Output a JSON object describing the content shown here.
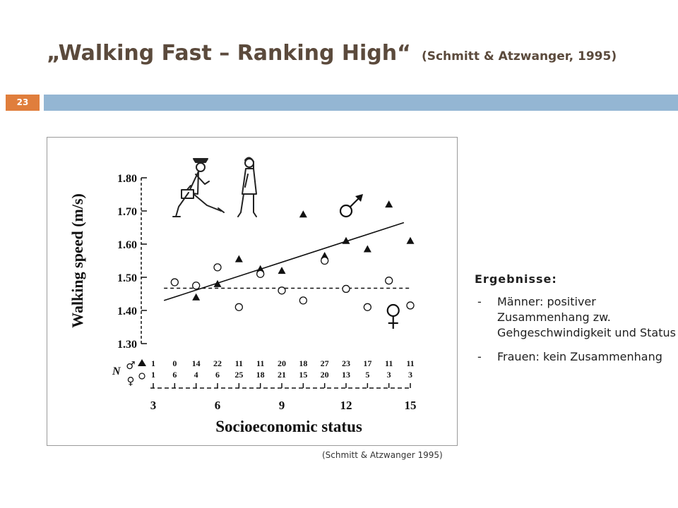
{
  "slide": {
    "title": "„Walking Fast – Ranking High“",
    "title_citation": "(Schmitt & Atzwanger, 1995)",
    "number": "23",
    "source_caption": "(Schmitt & Atzwanger 1995)",
    "colors": {
      "title": "#5b4a3c",
      "accent_bar": "#94b6d3",
      "slide_number_bg": "#e07e3c"
    }
  },
  "results": {
    "heading": "Ergebnisse:",
    "items": [
      {
        "bullet": "-",
        "text": "Männer: positiver Zusammenhang zw. Gehgeschwindigkeit und Status"
      },
      {
        "bullet": "-",
        "text": "Frauen: kein Zusammenhang"
      }
    ]
  },
  "chart_data": {
    "type": "scatter",
    "xlabel": "Socioeconomic status",
    "ylabel": "Walking speed (m/s)",
    "xlim": [
      3,
      15
    ],
    "ylim": [
      1.3,
      1.8
    ],
    "x_ticks": [
      "3",
      "6",
      "9",
      "12",
      "15"
    ],
    "y_ticks": [
      "1.30",
      "1.40",
      "1.50",
      "1.60",
      "1.70",
      "1.80"
    ],
    "n_label": "N",
    "male_symbol": "♂",
    "female_symbol": "♀",
    "n_counts": {
      "x": [
        3,
        4,
        5,
        6,
        7,
        8,
        9,
        10,
        11,
        12,
        13,
        14,
        15
      ],
      "male": [
        "1",
        "0",
        "14",
        "22",
        "11",
        "11",
        "20",
        "18",
        "27",
        "23",
        "17",
        "11",
        "11"
      ],
      "female": [
        "1",
        "6",
        "4",
        "6",
        "25",
        "18",
        "21",
        "15",
        "20",
        "13",
        "5",
        "3",
        "3"
      ]
    },
    "series": [
      {
        "marker": "filled-triangle",
        "points": [
          [
            5,
            1.44
          ],
          [
            6,
            1.48
          ],
          [
            7,
            1.555
          ],
          [
            8,
            1.525
          ],
          [
            9,
            1.52
          ],
          [
            10,
            1.69
          ],
          [
            11,
            1.565
          ],
          [
            12,
            1.61
          ],
          [
            13,
            1.585
          ],
          [
            14,
            1.72
          ],
          [
            15,
            1.61
          ]
        ]
      },
      {
        "marker": "open-circle",
        "points": [
          [
            4,
            1.485
          ],
          [
            5,
            1.475
          ],
          [
            6,
            1.53
          ],
          [
            7,
            1.41
          ],
          [
            8,
            1.51
          ],
          [
            9,
            1.46
          ],
          [
            10,
            1.43
          ],
          [
            11,
            1.55
          ],
          [
            12,
            1.465
          ],
          [
            13,
            1.41
          ],
          [
            14,
            1.49
          ],
          [
            15,
            1.415
          ]
        ]
      }
    ],
    "trend_lines": [
      {
        "style": "solid",
        "from": [
          3.5,
          1.43
        ],
        "to": [
          14.7,
          1.665
        ]
      },
      {
        "style": "dashed",
        "from": [
          3.5,
          1.467
        ],
        "to": [
          15,
          1.467
        ]
      }
    ]
  }
}
